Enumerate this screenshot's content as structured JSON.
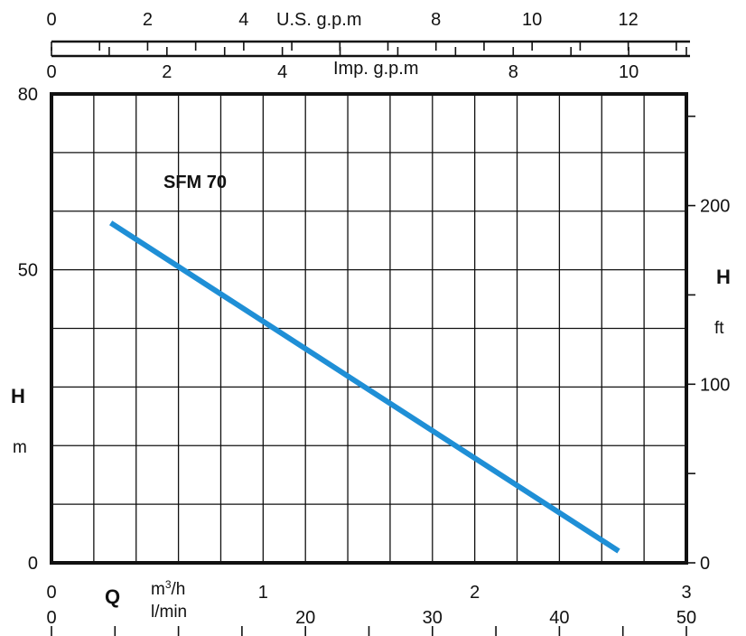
{
  "chart_data": {
    "type": "line",
    "title": "SFM 70",
    "left_axis": {
      "label": "H",
      "unit": "m",
      "range": [
        0,
        80
      ],
      "tick_labels": [
        "0",
        "50",
        "80"
      ]
    },
    "right_axis": {
      "label": "H",
      "unit": "ft",
      "range": [
        0,
        262.5
      ],
      "tick_labels": [
        "0",
        "100",
        "200"
      ]
    },
    "bottom_axis": {
      "label": "Q",
      "range": [
        0,
        3
      ],
      "scales": [
        {
          "unit": "m3/h",
          "ticks": [
            0,
            1,
            2,
            3
          ]
        },
        {
          "unit": "l/min",
          "ticks": [
            0,
            20,
            30,
            40,
            50
          ]
        }
      ]
    },
    "top_axes": [
      {
        "unit": "U.S. g.p.m",
        "range": [
          0,
          13.21
        ],
        "ticks": [
          0,
          2,
          4,
          8,
          10,
          12
        ]
      },
      {
        "unit": "Imp. g.p.m",
        "range": [
          0,
          11.0
        ],
        "ticks": [
          0,
          2,
          4,
          8,
          10
        ]
      }
    ],
    "grid": true,
    "series": [
      {
        "color": "#1f8fd6",
        "x": [
          0.28,
          2.68
        ],
        "y": [
          58,
          2
        ]
      }
    ]
  }
}
